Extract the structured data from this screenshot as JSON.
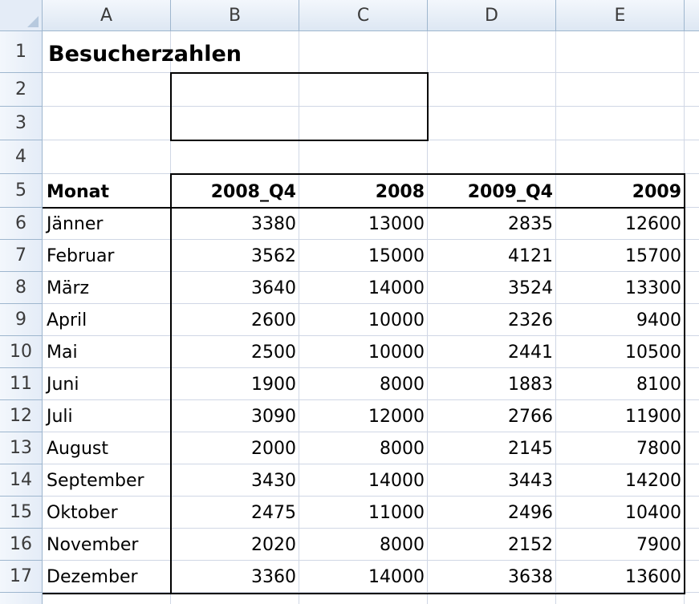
{
  "columns": [
    "A",
    "B",
    "C",
    "D",
    "E"
  ],
  "rows": [
    "1",
    "2",
    "3",
    "4",
    "5",
    "6",
    "7",
    "8",
    "9",
    "10",
    "11",
    "12",
    "13",
    "14",
    "15",
    "16",
    "17"
  ],
  "title": "Besucherzahlen",
  "table": {
    "headers": [
      "Monat",
      "2008_Q4",
      "2008",
      "2009_Q4",
      "2009"
    ],
    "rows": [
      [
        "Jänner",
        "3380",
        "13000",
        "2835",
        "12600"
      ],
      [
        "Februar",
        "3562",
        "15000",
        "4121",
        "15700"
      ],
      [
        "März",
        "3640",
        "14000",
        "3524",
        "13300"
      ],
      [
        "April",
        "2600",
        "10000",
        "2326",
        "9400"
      ],
      [
        "Mai",
        "2500",
        "10000",
        "2441",
        "10500"
      ],
      [
        "Juni",
        "1900",
        "8000",
        "1883",
        "8100"
      ],
      [
        "Juli",
        "3090",
        "12000",
        "2766",
        "11900"
      ],
      [
        "August",
        "2000",
        "8000",
        "2145",
        "7800"
      ],
      [
        "September",
        "3430",
        "14000",
        "3443",
        "14200"
      ],
      [
        "Oktober",
        "2475",
        "11000",
        "2496",
        "10400"
      ],
      [
        "November",
        "2020",
        "8000",
        "2152",
        "7900"
      ],
      [
        "Dezember",
        "3360",
        "14000",
        "3638",
        "13600"
      ]
    ]
  }
}
